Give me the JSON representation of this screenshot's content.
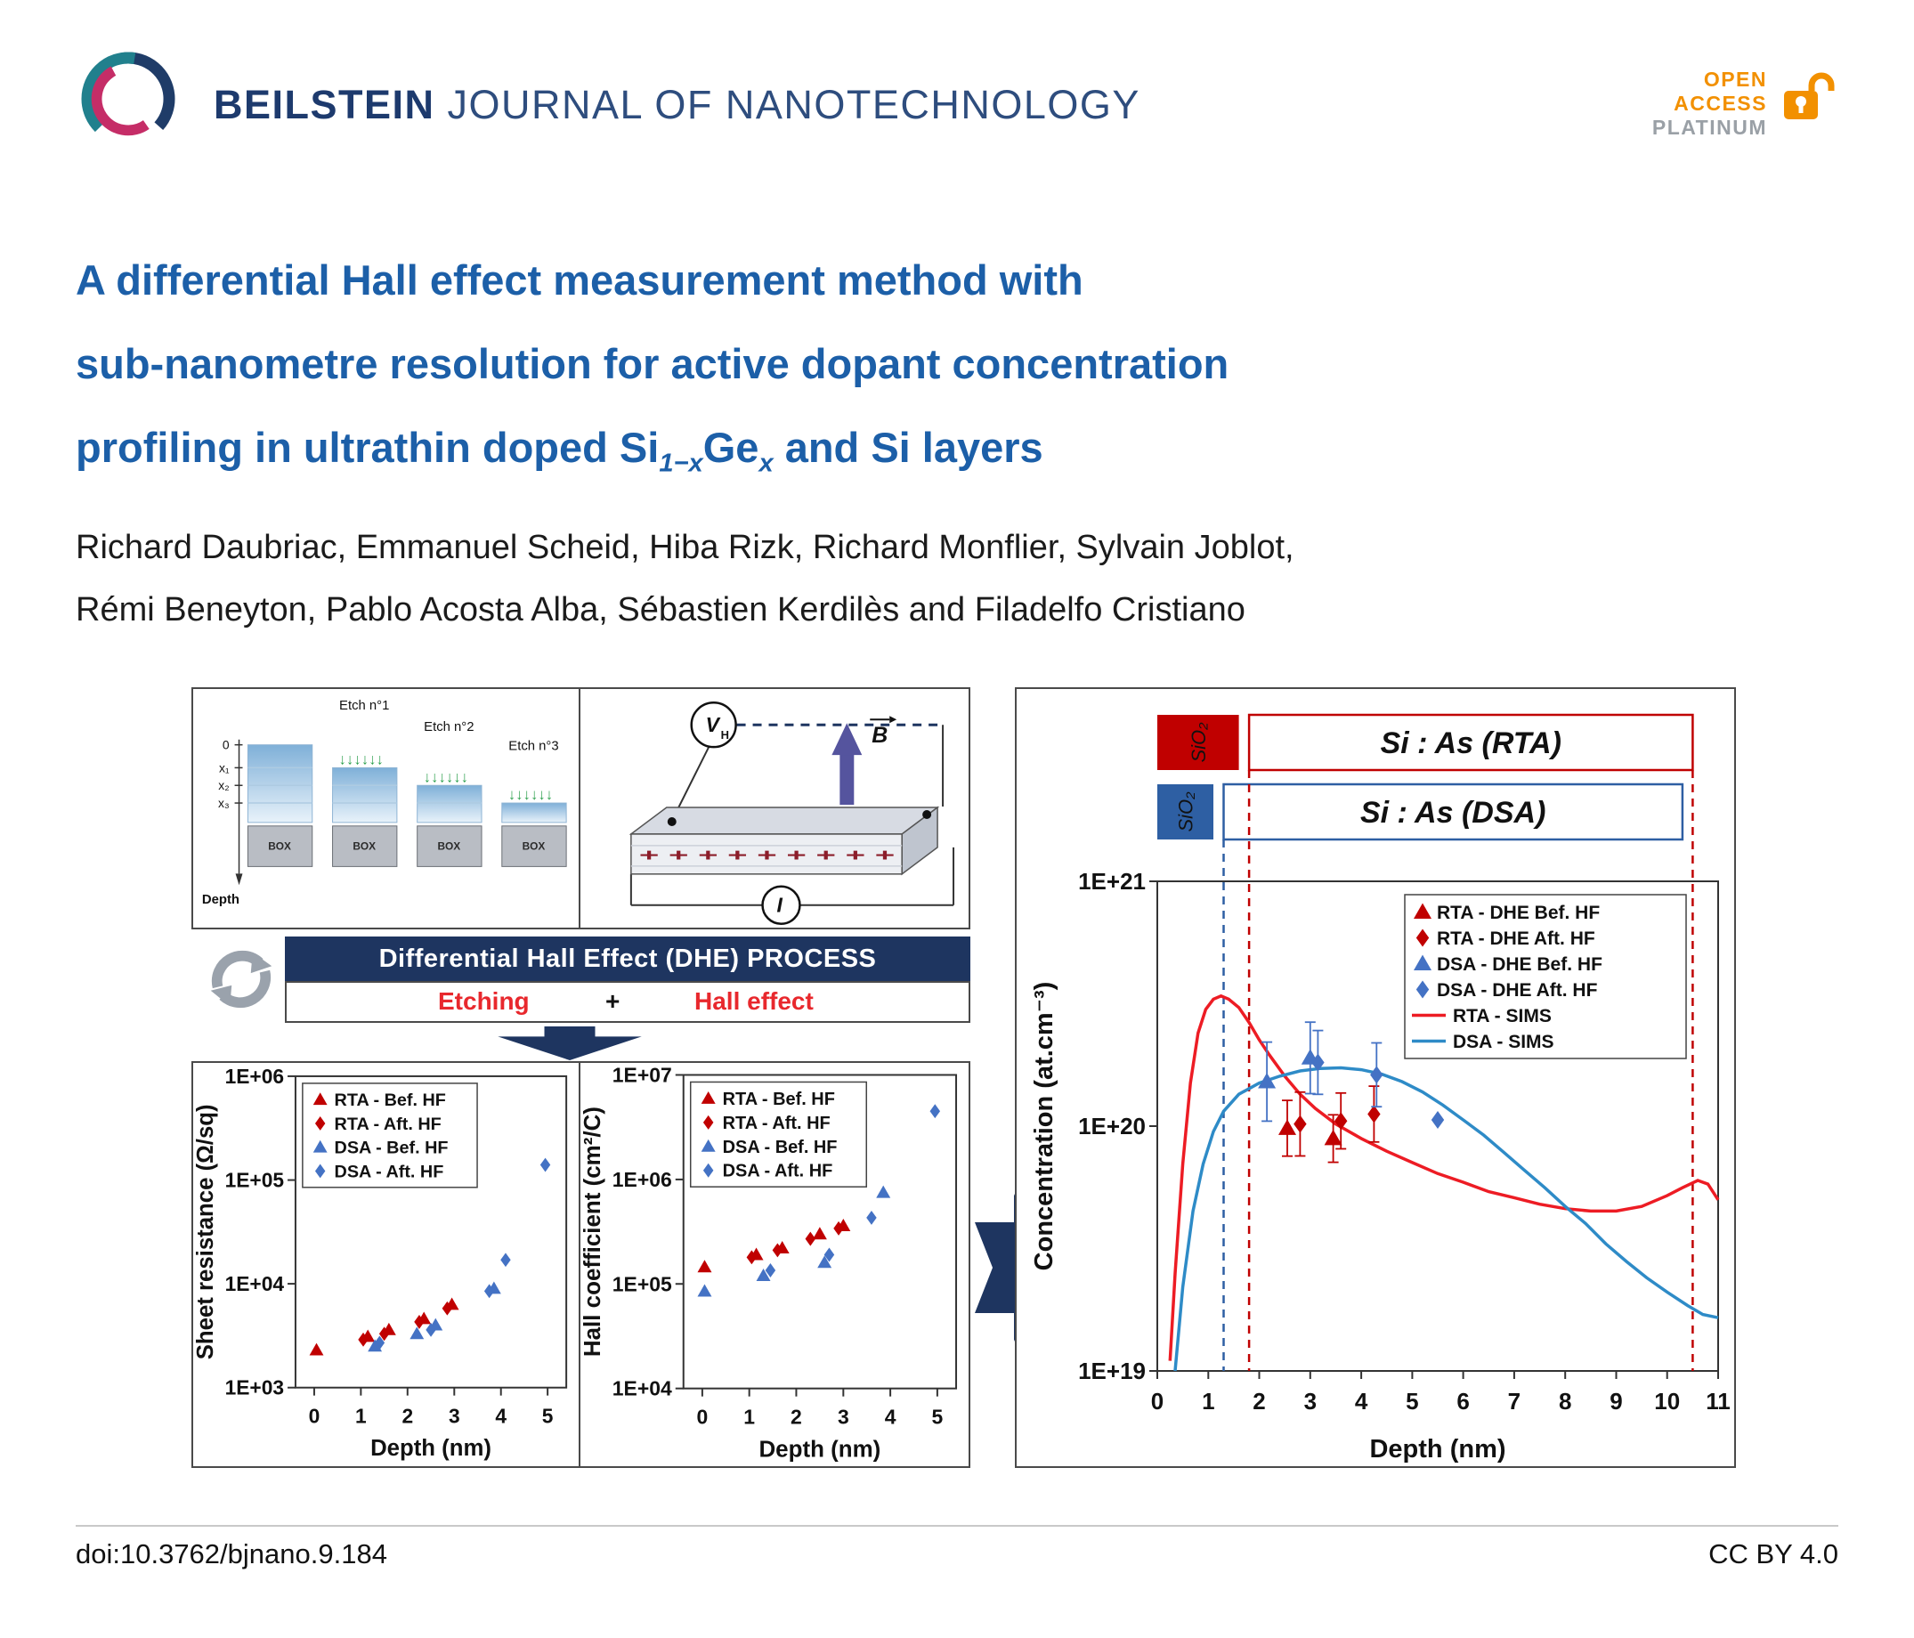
{
  "header": {
    "journal_bold": "BEILSTEIN",
    "journal_rest": " JOURNAL OF NANOTECHNOLOGY",
    "badge_line1": "OPEN",
    "badge_line2": "ACCESS",
    "badge_line3": "PLATINUM"
  },
  "title": {
    "line1": "A differential Hall effect measurement method with",
    "line2": "sub-nanometre resolution for active dopant concentration",
    "line3_pre": "profiling in ultrathin doped Si",
    "line3_sub1": "1−x",
    "line3_ge": "Ge",
    "line3_sub2": "x",
    "line3_post": " and Si layers"
  },
  "authors": {
    "line1": "Richard Daubriac, Emmanuel Scheid, Hiba Rizk, Richard Monflier, Sylvain Joblot,",
    "line2": "Rémi Beneyton, Pablo Acosta Alba, Sébastien Kerdilès and Filadelfo Cristiano"
  },
  "figure": {
    "etch_panel": {
      "etch_labels": [
        "Etch n°1",
        "Etch n°2",
        "Etch n°3"
      ],
      "axis_labels": [
        "0",
        "x₁",
        "x₂",
        "x₃"
      ],
      "depth_label": "Depth",
      "box_label": "BOX",
      "arrows": "↓↓↓↓↓↓"
    },
    "hall_panel": {
      "v": "V",
      "v_sub": "H",
      "b": "B",
      "i": "I",
      "charges": "+   +   +   +   +   +   +   +   +"
    },
    "process_banner": "Differential Hall Effect (DHE) PROCESS",
    "etching_label": "Etching",
    "plus_label": "+",
    "hall_effect_label": "Hall effect"
  },
  "footer": {
    "doi": "doi:10.3762/bjnano.9.184",
    "license": "CC BY 4.0"
  },
  "colors": {
    "title_blue": "#1c5fa8",
    "banner_navy": "#1e3560",
    "accent_red": "#e8282d",
    "marker_red": "#c00000",
    "marker_blue": "#4472c4",
    "sims_red": "#ed1c24",
    "sims_blue": "#2e8bc7",
    "open_access_orange": "#f29000"
  },
  "chart_data": [
    {
      "id": "sheet-resistance",
      "type": "scatter",
      "xlabel": "Depth (nm)",
      "ylabel": "Sheet resistance (Ω/sq)",
      "xlim": [
        -0.4,
        5.4
      ],
      "ylim": [
        1000.0,
        1000000.0
      ],
      "yscale": "log",
      "grid": false,
      "legend_position": "top-left",
      "xticks": [
        0,
        1,
        2,
        3,
        4,
        5
      ],
      "yticks": [
        {
          "value": 1000.0,
          "label": "1E+03"
        },
        {
          "value": 10000.0,
          "label": "1E+04"
        },
        {
          "value": 100000.0,
          "label": "1E+05"
        },
        {
          "value": 1000000.0,
          "label": "1E+06"
        }
      ],
      "series": [
        {
          "name": "RTA - Bef. HF",
          "marker": "triangle",
          "color": "#c00000",
          "points": [
            [
              0.05,
              2300
            ],
            [
              1.15,
              3100
            ],
            [
              1.6,
              3600
            ],
            [
              2.35,
              4600
            ],
            [
              2.95,
              6300
            ]
          ]
        },
        {
          "name": "RTA - Aft. HF",
          "marker": "diamond",
          "color": "#c00000",
          "points": [
            [
              1.05,
              2900
            ],
            [
              1.5,
              3300
            ],
            [
              2.25,
              4300
            ],
            [
              2.85,
              5800
            ]
          ]
        },
        {
          "name": "DSA - Bef. HF",
          "marker": "triangle",
          "color": "#4472c4",
          "points": [
            [
              1.3,
              2500
            ],
            [
              2.2,
              3300
            ],
            [
              2.6,
              4000
            ],
            [
              3.85,
              9000
            ]
          ]
        },
        {
          "name": "DSA - Aft. HF",
          "marker": "diamond",
          "color": "#4472c4",
          "points": [
            [
              1.4,
              2700
            ],
            [
              2.5,
              3600
            ],
            [
              3.75,
              8500
            ],
            [
              4.1,
              17000
            ],
            [
              4.95,
              140000
            ]
          ]
        }
      ]
    },
    {
      "id": "hall-coefficient",
      "type": "scatter",
      "xlabel": "Depth (nm)",
      "ylabel": "Hall coefficient (cm²/C)",
      "xlim": [
        -0.4,
        5.4
      ],
      "ylim": [
        10000.0,
        10000000.0
      ],
      "yscale": "log",
      "grid": false,
      "legend_position": "top-left",
      "xticks": [
        0,
        1,
        2,
        3,
        4,
        5
      ],
      "yticks": [
        {
          "value": 10000.0,
          "label": "1E+04"
        },
        {
          "value": 100000.0,
          "label": "1E+05"
        },
        {
          "value": 1000000.0,
          "label": "1E+06"
        },
        {
          "value": 10000000.0,
          "label": "1E+07"
        }
      ],
      "series": [
        {
          "name": "RTA - Bef. HF",
          "marker": "triangle",
          "color": "#c00000",
          "points": [
            [
              0.05,
              145000.0
            ],
            [
              1.15,
              190000.0
            ],
            [
              1.7,
              220000.0
            ],
            [
              2.5,
              300000.0
            ],
            [
              3.0,
              360000.0
            ]
          ]
        },
        {
          "name": "RTA - Aft. HF",
          "marker": "diamond",
          "color": "#c00000",
          "points": [
            [
              1.05,
              180000.0
            ],
            [
              1.6,
              210000.0
            ],
            [
              2.3,
              270000.0
            ],
            [
              2.9,
              340000.0
            ]
          ]
        },
        {
          "name": "DSA - Bef. HF",
          "marker": "triangle",
          "color": "#4472c4",
          "points": [
            [
              0.05,
              85000.0
            ],
            [
              1.3,
              120000.0
            ],
            [
              2.6,
              160000.0
            ],
            [
              3.85,
              750000.0
            ]
          ]
        },
        {
          "name": "DSA - Aft. HF",
          "marker": "diamond",
          "color": "#4472c4",
          "points": [
            [
              1.45,
              135000.0
            ],
            [
              2.7,
              190000.0
            ],
            [
              3.6,
              430000.0
            ],
            [
              4.95,
              4500000.0
            ]
          ]
        }
      ]
    },
    {
      "id": "concentration",
      "type": "mixed",
      "xlabel": "Depth (nm)",
      "ylabel": "Concentration (at.cm⁻³)",
      "xlim": [
        0,
        11
      ],
      "ylim": [
        1e+19,
        1e+21
      ],
      "yscale": "log",
      "grid": false,
      "legend_position": "top-right",
      "xticks": [
        0,
        1,
        2,
        3,
        4,
        5,
        6,
        7,
        8,
        9,
        10,
        11
      ],
      "yticks": [
        {
          "value": 1e+19,
          "label": "1E+19"
        },
        {
          "value": 1e+20,
          "label": "1E+20"
        },
        {
          "value": 1e+21,
          "label": "1E+21"
        }
      ],
      "vlines": [
        {
          "x": 1.3,
          "color": "#2e5fa3",
          "y0": 168
        },
        {
          "x": 1.8,
          "color": "#c00000",
          "y0": 90
        },
        {
          "x": 10.5,
          "color": "#c00000",
          "y0": 90
        }
      ],
      "stack": {
        "rows": [
          {
            "sio2_label": "SiO₂",
            "label": "Si : As (RTA)",
            "color": "#c00000",
            "sio2_range": [
              0,
              1.6
            ],
            "box_range": [
              1.8,
              10.5
            ]
          },
          {
            "sio2_label": "SiO₂",
            "label": "Si : As (DSA)",
            "color": "#2e5fa3",
            "sio2_range": [
              0,
              1.1
            ],
            "box_range": [
              1.3,
              10.3
            ]
          }
        ]
      },
      "series": [
        {
          "name": "RTA - DHE Bef. HF",
          "marker": "triangle",
          "color": "#c00000",
          "points": [
            [
              2.55,
              9.8e+19,
              1.3
            ],
            [
              3.45,
              8.9e+19,
              1.25
            ]
          ]
        },
        {
          "name": "RTA - DHE Aft. HF",
          "marker": "diamond",
          "color": "#c00000",
          "points": [
            [
              2.8,
              1.02e+20,
              1.35
            ],
            [
              3.6,
              1.05e+20,
              1.3
            ],
            [
              4.25,
              1.12e+20,
              1.3
            ]
          ]
        },
        {
          "name": "DSA - DHE Bef. HF",
          "marker": "triangle",
          "color": "#4472c4",
          "points": [
            [
              2.15,
              1.52e+20,
              1.45
            ],
            [
              3.0,
              1.9e+20,
              1.4
            ]
          ]
        },
        {
          "name": "DSA - DHE Aft. HF",
          "marker": "diamond",
          "color": "#4472c4",
          "points": [
            [
              3.15,
              1.82e+20,
              1.35
            ],
            [
              4.3,
              1.62e+20,
              1.35
            ],
            [
              5.5,
              1.06e+20
            ]
          ]
        },
        {
          "name": "RTA - SIMS",
          "type": "line",
          "color": "#ed1c24",
          "points": [
            [
              0.25,
              1.1e+19
            ],
            [
              0.35,
              2.5e+19
            ],
            [
              0.5,
              7e+19
            ],
            [
              0.65,
              1.5e+20
            ],
            [
              0.8,
              2.4e+20
            ],
            [
              0.95,
              3e+20
            ],
            [
              1.1,
              3.3e+20
            ],
            [
              1.25,
              3.4e+20
            ],
            [
              1.4,
              3.3e+20
            ],
            [
              1.6,
              3.05e+20
            ],
            [
              1.8,
              2.65e+20
            ],
            [
              2.0,
              2.25e+20
            ],
            [
              2.2,
              1.95e+20
            ],
            [
              2.5,
              1.6e+20
            ],
            [
              2.8,
              1.35e+20
            ],
            [
              3.1,
              1.18e+20
            ],
            [
              3.5,
              1.02e+20
            ],
            [
              4.0,
              8.9e+19
            ],
            [
              4.5,
              7.9e+19
            ],
            [
              5.0,
              7.1e+19
            ],
            [
              5.5,
              6.4e+19
            ],
            [
              6.0,
              5.9e+19
            ],
            [
              6.5,
              5.4e+19
            ],
            [
              7.0,
              5.1e+19
            ],
            [
              7.5,
              4.8e+19
            ],
            [
              8.0,
              4.6e+19
            ],
            [
              8.5,
              4.5e+19
            ],
            [
              9.0,
              4.5e+19
            ],
            [
              9.5,
              4.7e+19
            ],
            [
              10.0,
              5.2e+19
            ],
            [
              10.3,
              5.6e+19
            ],
            [
              10.6,
              6e+19
            ],
            [
              10.8,
              5.8e+19
            ],
            [
              11.0,
              5e+19
            ]
          ]
        },
        {
          "name": "DSA - SIMS",
          "type": "line",
          "color": "#2e8bc7",
          "points": [
            [
              0.35,
              1e+19
            ],
            [
              0.5,
              2.2e+19
            ],
            [
              0.7,
              4.5e+19
            ],
            [
              0.9,
              7e+19
            ],
            [
              1.1,
              9.5e+19
            ],
            [
              1.3,
              1.15e+20
            ],
            [
              1.6,
              1.35e+20
            ],
            [
              2.0,
              1.5e+20
            ],
            [
              2.4,
              1.6e+20
            ],
            [
              2.8,
              1.68e+20
            ],
            [
              3.2,
              1.72e+20
            ],
            [
              3.6,
              1.73e+20
            ],
            [
              4.0,
              1.7e+20
            ],
            [
              4.4,
              1.63e+20
            ],
            [
              4.8,
              1.52e+20
            ],
            [
              5.2,
              1.38e+20
            ],
            [
              5.6,
              1.22e+20
            ],
            [
              6.0,
              1.06e+20
            ],
            [
              6.4,
              9.2e+19
            ],
            [
              6.8,
              7.8e+19
            ],
            [
              7.2,
              6.6e+19
            ],
            [
              7.6,
              5.6e+19
            ],
            [
              8.0,
              4.7e+19
            ],
            [
              8.4,
              4e+19
            ],
            [
              8.8,
              3.3e+19
            ],
            [
              9.2,
              2.8e+19
            ],
            [
              9.6,
              2.4e+19
            ],
            [
              10.0,
              2.1e+19
            ],
            [
              10.4,
              1.85e+19
            ],
            [
              10.7,
              1.7e+19
            ],
            [
              11.0,
              1.65e+19
            ]
          ]
        }
      ]
    }
  ]
}
